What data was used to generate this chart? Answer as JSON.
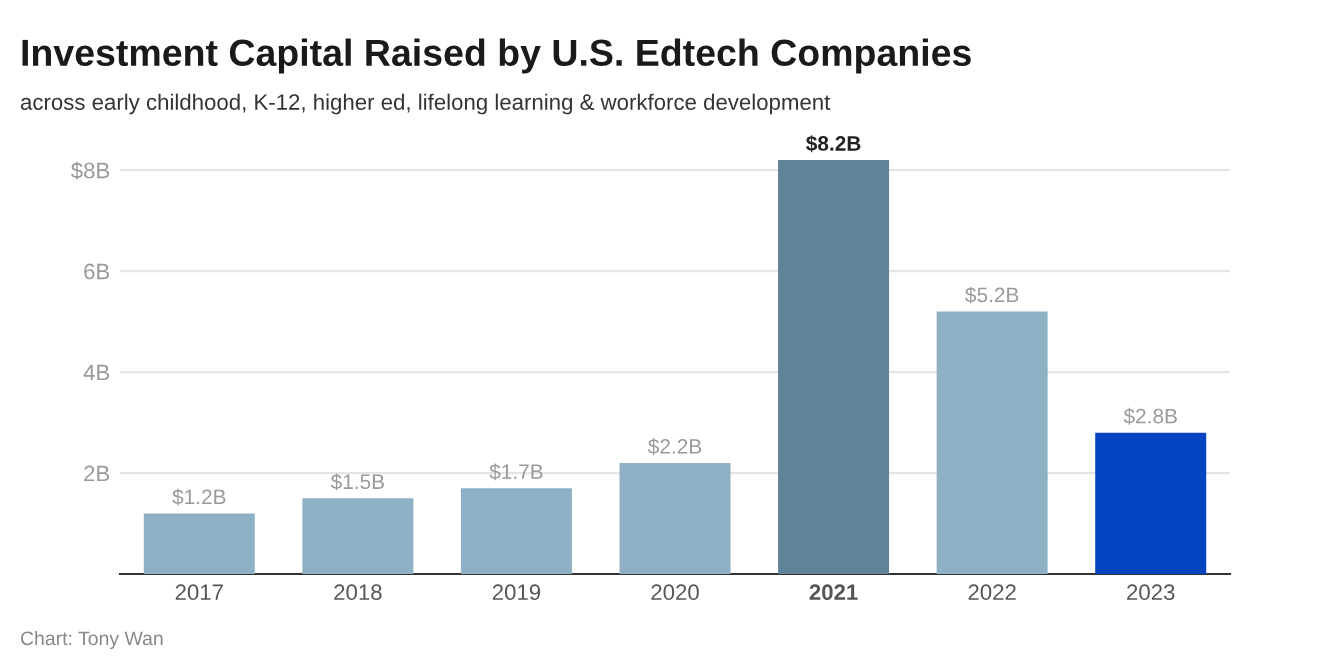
{
  "chart_data": {
    "type": "bar",
    "title": "Investment Capital Raised by U.S. Edtech Companies",
    "subtitle": "across early childhood, K-12, higher ed, lifelong learning & workforce development",
    "categories": [
      "2017",
      "2018",
      "2019",
      "2020",
      "2021",
      "2022",
      "2023"
    ],
    "values": [
      1.2,
      1.5,
      1.7,
      2.2,
      8.2,
      5.2,
      2.8
    ],
    "value_labels": [
      "$1.2B",
      "$1.5B",
      "$1.7B",
      "$2.2B",
      "$8.2B",
      "$5.2B",
      "$2.8B"
    ],
    "colors": [
      "#8eb0c5",
      "#8eb0c5",
      "#8eb0c5",
      "#8eb0c5",
      "#5f8399",
      "#8eb0c5",
      "#0645c2"
    ],
    "ylim": [
      0,
      8.2
    ],
    "yticks": [
      {
        "value": 2,
        "label": "2B"
      },
      {
        "value": 4,
        "label": "4B"
      },
      {
        "value": 6,
        "label": "6B"
      },
      {
        "value": 8,
        "label": "$8B"
      }
    ],
    "grid": "y",
    "annotations": [
      "Chart: Tony Wan"
    ]
  }
}
